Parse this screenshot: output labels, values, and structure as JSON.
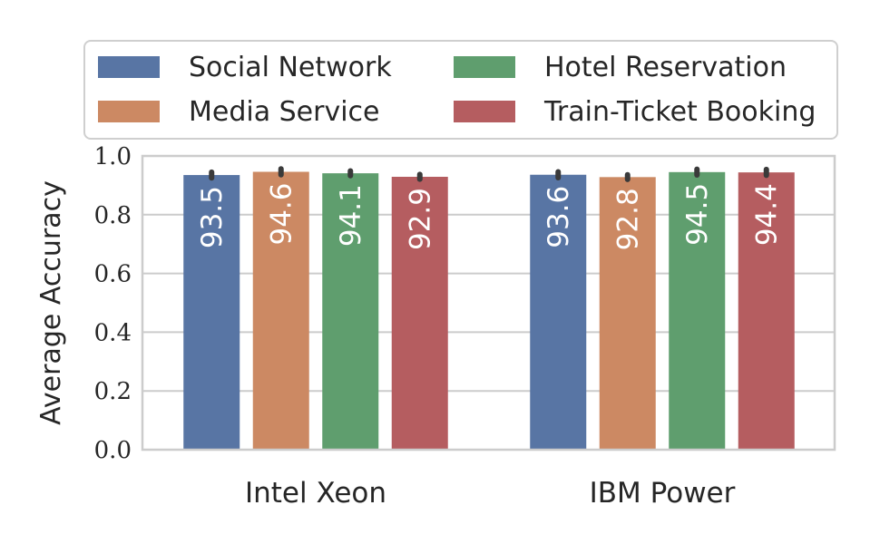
{
  "chart_data": {
    "type": "bar",
    "title": "",
    "xlabel": "",
    "ylabel": "Average Accuracy",
    "ylim": [
      0.0,
      1.0
    ],
    "yticks": [
      "0.0",
      "0.2",
      "0.4",
      "0.6",
      "0.8",
      "1.0"
    ],
    "grid": true,
    "legend_position": "top",
    "categories": [
      "Intel Xeon",
      "IBM Power"
    ],
    "series": [
      {
        "name": "Social Network",
        "color": "#5875a4",
        "values": [
          0.935,
          0.936
        ],
        "labels": [
          "93.5",
          "93.6"
        ],
        "err": [
          0.01,
          0.01
        ]
      },
      {
        "name": "Media Service",
        "color": "#cc8963",
        "values": [
          0.946,
          0.928
        ],
        "labels": [
          "94.6",
          "92.8"
        ],
        "err": [
          0.01,
          0.008
        ]
      },
      {
        "name": "Hotel Reservation",
        "color": "#5f9e6e",
        "values": [
          0.941,
          0.945
        ],
        "labels": [
          "94.1",
          "94.5"
        ],
        "err": [
          0.008,
          0.01
        ]
      },
      {
        "name": "Train-Ticket Booking",
        "color": "#b55d60",
        "values": [
          0.929,
          0.944
        ],
        "labels": [
          "92.9",
          "94.4"
        ],
        "err": [
          0.008,
          0.01
        ]
      }
    ]
  }
}
